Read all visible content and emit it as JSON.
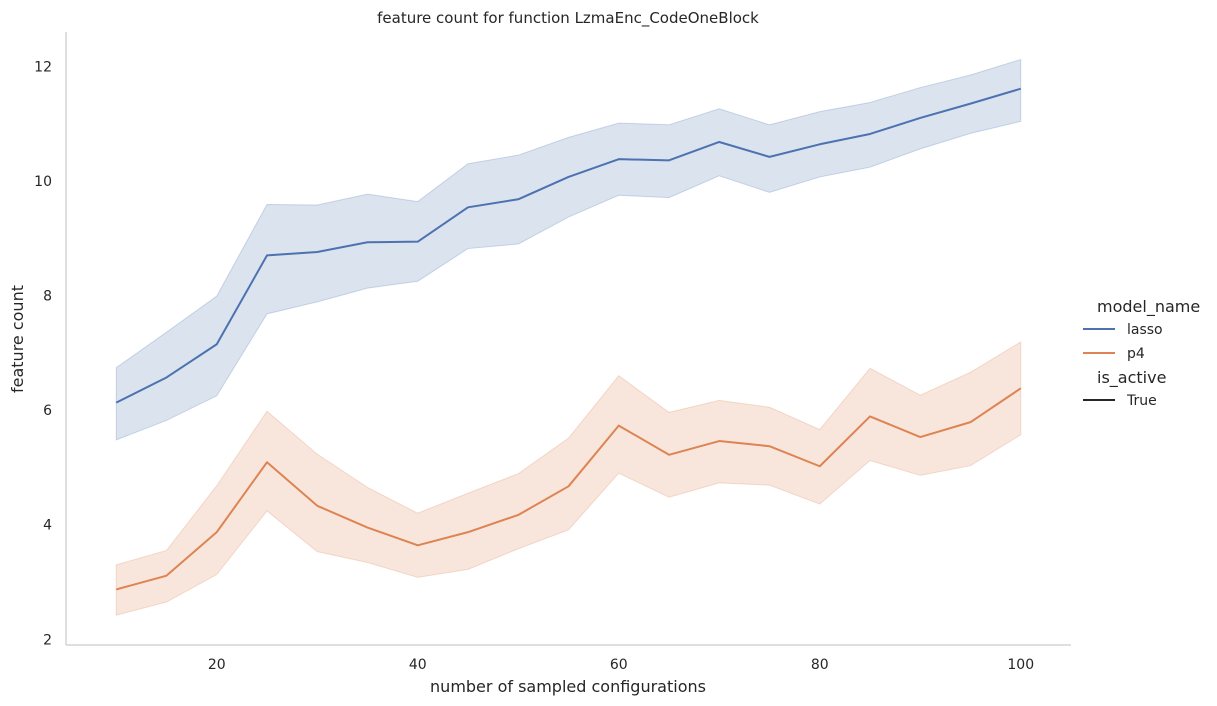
{
  "chart_data": {
    "type": "line",
    "title": "feature count for function LzmaEnc_CodeOneBlock",
    "xlabel": "number of sampled configurations",
    "ylabel": "feature count",
    "xlim": [
      5,
      105
    ],
    "ylim": [
      1.9,
      12.6
    ],
    "xticks": [
      20,
      40,
      60,
      80,
      100
    ],
    "yticks": [
      2,
      4,
      6,
      8,
      10,
      12
    ],
    "grid": false,
    "legend_position": "right",
    "x": [
      10,
      15,
      20,
      25,
      30,
      35,
      40,
      45,
      50,
      55,
      60,
      65,
      70,
      75,
      80,
      85,
      90,
      95,
      100
    ],
    "series": [
      {
        "name": "lasso",
        "color": "#4c72b0",
        "values": [
          6.13,
          6.57,
          7.15,
          8.7,
          8.76,
          8.93,
          8.94,
          9.54,
          9.68,
          10.07,
          10.38,
          10.36,
          10.68,
          10.42,
          10.64,
          10.82,
          11.1,
          11.35,
          11.61
        ],
        "ci_lower": [
          5.48,
          5.82,
          6.25,
          7.68,
          7.89,
          8.13,
          8.25,
          8.82,
          8.9,
          9.37,
          9.75,
          9.71,
          10.09,
          9.8,
          10.07,
          10.24,
          10.56,
          10.83,
          11.04
        ],
        "ci_upper": [
          6.74,
          7.36,
          7.99,
          9.59,
          9.58,
          9.77,
          9.64,
          10.3,
          10.45,
          10.76,
          11.01,
          10.98,
          11.26,
          10.98,
          11.21,
          11.37,
          11.63,
          11.85,
          12.12
        ]
      },
      {
        "name": "p4",
        "color": "#dd8452",
        "values": [
          2.87,
          3.11,
          3.87,
          5.09,
          4.33,
          3.95,
          3.64,
          3.87,
          4.17,
          4.67,
          5.73,
          5.22,
          5.46,
          5.37,
          5.02,
          5.89,
          5.53,
          5.79,
          6.38
        ],
        "ci_lower": [
          2.42,
          2.65,
          3.13,
          4.24,
          3.53,
          3.34,
          3.08,
          3.22,
          3.58,
          3.91,
          4.9,
          4.48,
          4.73,
          4.69,
          4.36,
          5.12,
          4.86,
          5.03,
          5.57
        ],
        "ci_upper": [
          3.3,
          3.55,
          4.68,
          5.98,
          5.23,
          4.65,
          4.2,
          4.55,
          4.89,
          5.51,
          6.6,
          5.96,
          6.17,
          6.05,
          5.66,
          6.73,
          6.26,
          6.66,
          7.19
        ]
      }
    ],
    "legend": {
      "hue_title": "model_name",
      "hue_entries": [
        "lasso",
        "p4"
      ],
      "style_title": "is_active",
      "style_entries": [
        "True"
      ]
    }
  }
}
